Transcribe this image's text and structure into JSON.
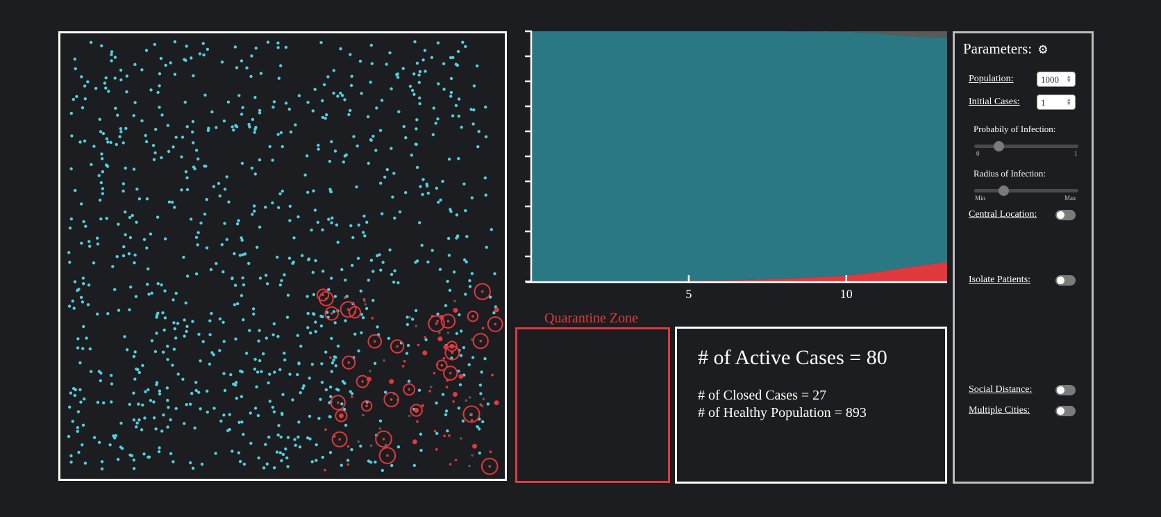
{
  "quarantine_label": "Quarantine Zone",
  "stats": {
    "active_cases": "# of Active Cases = 80",
    "closed_cases": "# of Closed Cases = 27",
    "healthy_population": "# of Healthy Population = 893"
  },
  "params": {
    "title": "Parameters:",
    "gear_icon": "⚙",
    "population_label": "Population:",
    "population_value": "1000",
    "initial_cases_label": "Initial Cases:",
    "initial_cases_value": "1",
    "prob_label": "Probabily of Infection:",
    "prob_min": "0",
    "prob_max": "1",
    "prob_value": 0.23,
    "radius_label": "Radius of Infection:",
    "radius_min": "Min",
    "radius_max": "Max",
    "radius_value": 0.28,
    "central_location_label": "Central Location:",
    "isolate_patients_label": "Isolate Patients:",
    "social_distance_label": "Social Distance:",
    "multiple_cities_label": "Multiple Cities:",
    "toggles": {
      "central_location": false,
      "isolate_patients": false,
      "social_distance": false,
      "multiple_cities": false
    }
  },
  "colors": {
    "healthy": "#4fd1e4",
    "infected": "#e0393e",
    "closed": "#5a5a5a",
    "area_healthy": "#2a7883",
    "area_infected": "#e0393e",
    "area_closed": "#5a5a5a"
  },
  "chart_data": {
    "type": "area",
    "x": [
      0,
      1,
      2,
      3,
      4,
      5,
      6,
      7,
      8,
      9,
      10,
      11,
      12,
      13.2
    ],
    "xticks": [
      "5",
      "10"
    ],
    "xtick_values": [
      5,
      10
    ],
    "ylim": [
      0,
      1000
    ],
    "series": [
      {
        "values": [
          1,
          1,
          2,
          3,
          3,
          5,
          6,
          9,
          13,
          19,
          26,
          40,
          60,
          80
        ]
      },
      {
        "values": [
          999,
          999,
          998,
          997,
          997,
          995,
          994,
          991,
          987,
          980,
          972,
          952,
          920,
          893
        ]
      },
      {
        "values": [
          0,
          0,
          0,
          0,
          0,
          0,
          0,
          0,
          0,
          1,
          2,
          8,
          20,
          27
        ]
      }
    ]
  }
}
